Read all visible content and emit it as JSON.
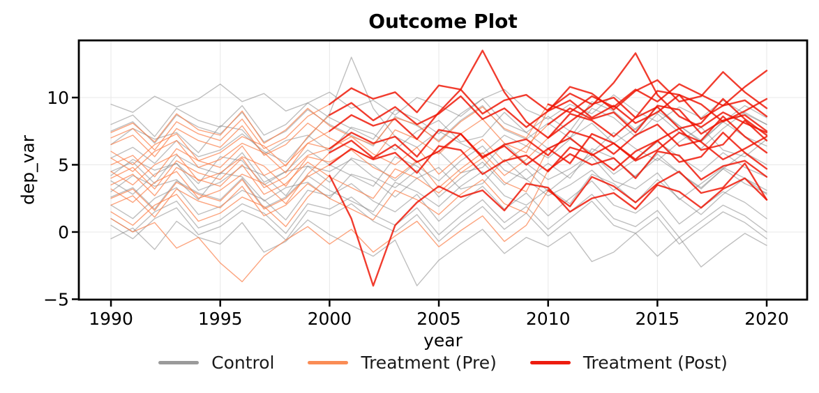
{
  "title": "Outcome Plot",
  "chart_data": {
    "type": "line",
    "title": "Outcome Plot",
    "xlabel": "year",
    "ylabel": "dep_var",
    "grid": true,
    "grid_color": "#e8e8e8",
    "xlim": [
      1988.53,
      2021.85
    ],
    "ylim": [
      -5.03,
      14.25
    ],
    "x_ticks": [
      1990,
      1995,
      2000,
      2005,
      2010,
      2015,
      2020
    ],
    "x_tick_labels": [
      "1990",
      "1995",
      "2000",
      "2005",
      "2010",
      "2015",
      "2020"
    ],
    "y_ticks": [
      -5,
      0,
      5,
      10
    ],
    "y_tick_labels": [
      "−5",
      "0",
      "5",
      "10"
    ],
    "x": [
      1990,
      1991,
      1992,
      1993,
      1994,
      1995,
      1996,
      1997,
      1998,
      1999,
      2000,
      2001,
      2002,
      2003,
      2004,
      2005,
      2006,
      2007,
      2008,
      2009,
      2010,
      2011,
      2012,
      2013,
      2014,
      2015,
      2016,
      2017,
      2018,
      2019,
      2020
    ],
    "styles": {
      "control": {
        "color": "#808080",
        "opacity": 0.5,
        "width": 1.4
      },
      "pre": {
        "color": "#fb7d47",
        "opacity": 0.7,
        "width": 1.4
      },
      "post": {
        "color": "#ee1100",
        "opacity": 0.82,
        "width": 2.4
      }
    },
    "legend": {
      "position": "bottom",
      "entries": [
        {
          "label": "Control",
          "color": "#9a9a9a"
        },
        {
          "label": "Treatment (Pre)",
          "color": "#fa8c55"
        },
        {
          "label": "Treatment (Post)",
          "color": "#ed1c0f"
        }
      ]
    },
    "series": [
      {
        "name": "control-01",
        "group": "control",
        "treat_year": null,
        "values": [
          6.5,
          7.7,
          6.9,
          7.4,
          5.9,
          7.9,
          7.6,
          5.8,
          6.8,
          7.2,
          6.0,
          7.8,
          7.3,
          6.1,
          7.5,
          8.3,
          6.7,
          7.1,
          8.9,
          7.4,
          6.2,
          7.0,
          8.1,
          6.6,
          7.7,
          9.0,
          7.9,
          6.8,
          8.2,
          7.1,
          6.4
        ]
      },
      {
        "name": "control-02",
        "group": "control",
        "treat_year": null,
        "values": [
          2.0,
          1.0,
          2.5,
          3.3,
          1.3,
          1.9,
          3.1,
          2.4,
          0.9,
          3.1,
          2.7,
          3.6,
          2.3,
          1.5,
          2.8,
          0.8,
          2.2,
          3.4,
          1.7,
          2.9,
          1.2,
          2.5,
          3.8,
          2.0,
          1.4,
          2.6,
          0.6,
          1.8,
          3.0,
          2.2,
          1.0
        ]
      },
      {
        "name": "control-03",
        "group": "control",
        "treat_year": null,
        "values": [
          4.5,
          5.2,
          3.6,
          5.7,
          4.8,
          4.3,
          5.9,
          3.7,
          4.5,
          6.1,
          5.0,
          4.2,
          3.4,
          5.6,
          4.9,
          3.8,
          5.3,
          6.4,
          4.6,
          3.9,
          5.1,
          4.0,
          6.2,
          5.5,
          4.1,
          5.8,
          4.4,
          3.2,
          4.7,
          5.9,
          5.0
        ]
      },
      {
        "name": "control-04",
        "group": "control",
        "treat_year": null,
        "values": [
          0.5,
          -0.5,
          1.0,
          1.8,
          -0.2,
          0.4,
          1.6,
          0.9,
          -0.6,
          1.6,
          1.2,
          2.1,
          0.8,
          0.0,
          1.3,
          -0.7,
          0.7,
          1.9,
          0.2,
          1.4,
          -0.3,
          1.0,
          2.3,
          0.5,
          -0.1,
          1.1,
          -0.9,
          0.3,
          1.5,
          0.7,
          -0.5
        ]
      },
      {
        "name": "control-05",
        "group": "control",
        "treat_year": null,
        "values": [
          7.5,
          8.2,
          6.6,
          8.7,
          7.8,
          7.3,
          8.9,
          6.7,
          7.5,
          9.1,
          8.0,
          7.2,
          6.4,
          8.6,
          7.9,
          6.8,
          8.3,
          9.4,
          7.6,
          6.9,
          8.1,
          7.0,
          9.2,
          8.5,
          7.1,
          8.8,
          7.4,
          6.2,
          7.7,
          8.9,
          8.0
        ]
      },
      {
        "name": "control-06",
        "group": "control",
        "treat_year": null,
        "values": [
          3.0,
          4.2,
          3.4,
          3.9,
          2.4,
          4.4,
          4.1,
          2.3,
          3.3,
          3.7,
          2.5,
          4.3,
          3.8,
          2.6,
          4.0,
          4.8,
          3.2,
          3.6,
          5.4,
          3.9,
          2.7,
          3.5,
          4.6,
          3.1,
          4.2,
          5.5,
          4.4,
          3.3,
          4.7,
          3.6,
          2.9
        ]
      },
      {
        "name": "control-07",
        "group": "control",
        "treat_year": null,
        "values": [
          5.5,
          6.3,
          5.1,
          6.8,
          5.6,
          6.1,
          7.3,
          6.0,
          5.2,
          7.0,
          8.8,
          13.0,
          9.2,
          7.1,
          6.3,
          7.5,
          6.6,
          5.8,
          7.2,
          6.4,
          5.5,
          6.9,
          5.9,
          7.4,
          6.2,
          5.3,
          6.7,
          7.8,
          6.1,
          5.6,
          6.9
        ]
      },
      {
        "name": "control-08",
        "group": "control",
        "treat_year": null,
        "values": [
          1.0,
          0.0,
          1.5,
          2.3,
          0.3,
          0.9,
          2.1,
          1.4,
          -0.1,
          2.1,
          1.7,
          2.6,
          1.3,
          0.5,
          1.8,
          -0.2,
          1.2,
          2.4,
          0.7,
          1.9,
          0.2,
          1.5,
          2.8,
          1.0,
          0.4,
          1.6,
          -0.4,
          0.8,
          2.0,
          1.2,
          0.0
        ]
      },
      {
        "name": "control-09",
        "group": "control",
        "treat_year": null,
        "values": [
          8.0,
          8.7,
          7.1,
          9.2,
          8.3,
          7.8,
          9.4,
          7.2,
          8.0,
          9.6,
          8.5,
          7.7,
          6.9,
          9.1,
          8.4,
          7.3,
          8.8,
          9.9,
          8.1,
          7.4,
          8.6,
          7.5,
          9.7,
          9.0,
          7.6,
          9.3,
          7.9,
          6.7,
          8.2,
          9.4,
          8.5
        ]
      },
      {
        "name": "control-10",
        "group": "control",
        "treat_year": null,
        "values": [
          3.8,
          2.8,
          4.3,
          5.1,
          3.1,
          3.7,
          4.9,
          4.2,
          2.7,
          4.9,
          4.5,
          5.4,
          4.1,
          3.3,
          4.6,
          2.6,
          4.0,
          5.2,
          3.5,
          4.7,
          3.0,
          4.3,
          5.6,
          3.8,
          3.2,
          4.4,
          2.4,
          3.6,
          4.8,
          4.0,
          2.8
        ]
      },
      {
        "name": "control-11",
        "group": "control",
        "treat_year": null,
        "values": [
          -0.5,
          0.3,
          -1.3,
          0.8,
          -0.4,
          -0.9,
          0.7,
          -1.5,
          -0.7,
          0.9,
          -0.2,
          -1.0,
          -1.8,
          -0.6,
          -4.0,
          -2.1,
          -0.9,
          0.2,
          -1.6,
          -0.4,
          -1.1,
          0.0,
          -2.2,
          -1.5,
          -0.1,
          -1.8,
          -0.4,
          -2.6,
          -1.3,
          -0.1,
          -1.0
        ]
      },
      {
        "name": "control-12",
        "group": "control",
        "treat_year": null,
        "values": [
          4.2,
          5.4,
          4.6,
          5.1,
          3.6,
          5.6,
          5.3,
          3.5,
          4.5,
          4.9,
          3.7,
          5.5,
          5.0,
          3.8,
          5.2,
          6.0,
          4.4,
          4.8,
          6.6,
          5.1,
          3.9,
          4.7,
          5.8,
          4.3,
          5.4,
          6.7,
          5.6,
          4.5,
          5.9,
          4.8,
          4.1
        ]
      },
      {
        "name": "control-13",
        "group": "control",
        "treat_year": null,
        "values": [
          2.6,
          3.3,
          1.7,
          3.8,
          2.9,
          2.4,
          4.0,
          1.8,
          2.6,
          4.2,
          3.1,
          2.3,
          1.5,
          3.7,
          3.0,
          1.9,
          3.4,
          4.5,
          2.7,
          2.0,
          3.2,
          2.1,
          4.3,
          3.6,
          2.2,
          3.9,
          2.5,
          1.3,
          2.8,
          4.0,
          3.1
        ]
      },
      {
        "name": "control-14",
        "group": "control",
        "treat_year": null,
        "values": [
          9.5,
          8.9,
          10.1,
          9.3,
          9.9,
          11.0,
          9.7,
          10.3,
          9.0,
          9.6,
          10.4,
          9.2,
          9.8,
          8.7,
          10.0,
          9.4,
          8.6,
          9.9,
          10.6,
          9.1,
          8.4,
          9.5,
          8.8,
          10.2,
          9.0,
          8.2,
          9.3,
          8.5,
          9.8,
          8.8,
          8.0
        ]
      },
      {
        "name": "treated-a1",
        "group": "treated",
        "treat_year": 2000,
        "values": [
          4.0,
          4.8,
          3.2,
          5.3,
          4.4,
          3.9,
          5.5,
          3.3,
          4.1,
          5.7,
          6.2,
          7.4,
          6.6,
          7.1,
          5.6,
          7.6,
          7.3,
          5.5,
          6.5,
          6.9,
          5.7,
          7.5,
          7.0,
          5.8,
          7.2,
          8.0,
          6.4,
          6.8,
          8.6,
          7.1,
          5.9
        ]
      },
      {
        "name": "treated-a2",
        "group": "treated",
        "treat_year": 2000,
        "values": [
          6.0,
          5.0,
          6.5,
          7.3,
          5.3,
          5.9,
          7.1,
          6.4,
          4.9,
          7.1,
          8.7,
          9.6,
          8.3,
          9.3,
          8.0,
          8.8,
          10.1,
          8.4,
          9.2,
          7.8,
          9.0,
          9.8,
          8.5,
          9.4,
          8.1,
          8.9,
          10.2,
          9.5,
          8.2,
          9.0,
          9.9
        ]
      },
      {
        "name": "treated-a3",
        "group": "treated",
        "treat_year": 2000,
        "values": [
          2.5,
          3.2,
          1.6,
          3.7,
          2.8,
          2.3,
          3.9,
          1.7,
          2.5,
          4.1,
          5.0,
          6.2,
          5.4,
          5.9,
          4.4,
          6.4,
          6.1,
          4.3,
          5.3,
          5.7,
          4.5,
          6.3,
          5.8,
          4.6,
          6.0,
          6.8,
          5.2,
          5.6,
          7.4,
          5.9,
          4.7
        ]
      },
      {
        "name": "treated-a4",
        "group": "treated",
        "treat_year": 2000,
        "values": [
          5.0,
          5.7,
          4.1,
          6.2,
          5.3,
          4.8,
          6.4,
          4.2,
          5.0,
          6.6,
          7.5,
          8.7,
          7.9,
          8.4,
          6.9,
          8.9,
          10.6,
          13.5,
          10.4,
          8.2,
          7.0,
          8.8,
          8.3,
          7.1,
          8.5,
          9.3,
          7.7,
          8.1,
          9.9,
          8.4,
          7.2
        ]
      },
      {
        "name": "treated-a5",
        "group": "treated",
        "treat_year": 2000,
        "values": [
          3.2,
          2.2,
          3.7,
          4.5,
          2.5,
          3.1,
          4.3,
          3.6,
          2.1,
          4.3,
          5.9,
          6.8,
          5.5,
          6.5,
          5.2,
          6.0,
          7.3,
          5.6,
          6.4,
          5.0,
          6.2,
          7.0,
          5.7,
          6.6,
          5.3,
          6.1,
          7.4,
          6.7,
          5.4,
          6.2,
          7.1
        ]
      },
      {
        "name": "treated-a6",
        "group": "treated",
        "treat_year": 2000,
        "values": [
          7.0,
          7.7,
          6.1,
          8.2,
          7.3,
          6.8,
          8.4,
          6.2,
          7.0,
          8.6,
          9.5,
          10.7,
          9.9,
          10.4,
          8.9,
          10.9,
          10.6,
          8.8,
          9.8,
          10.2,
          9.0,
          10.8,
          10.3,
          9.1,
          10.5,
          11.3,
          9.7,
          10.1,
          11.9,
          10.4,
          9.2
        ]
      },
      {
        "name": "treated-a7",
        "group": "treated",
        "treat_year": 2000,
        "values": [
          1.5,
          0.5,
          2.0,
          2.8,
          0.8,
          1.4,
          2.6,
          1.9,
          0.4,
          2.6,
          4.2,
          1.0,
          -4.0,
          0.5,
          2.2,
          3.4,
          2.6,
          3.1,
          1.6,
          3.6,
          3.3,
          1.5,
          2.5,
          2.9,
          1.7,
          3.5,
          3.0,
          1.8,
          3.2,
          4.0,
          2.4
        ]
      },
      {
        "name": "treated-b1",
        "group": "treated",
        "treat_year": 2010,
        "values": [
          3.5,
          4.3,
          2.7,
          4.8,
          3.9,
          3.4,
          5.0,
          2.8,
          3.6,
          5.2,
          4.1,
          3.3,
          2.5,
          4.7,
          4.0,
          2.9,
          4.4,
          5.5,
          3.7,
          3.0,
          6.2,
          5.1,
          7.3,
          6.6,
          5.4,
          6.8,
          7.7,
          6.1,
          6.5,
          8.3,
          6.8
        ]
      },
      {
        "name": "treated-b2",
        "group": "treated",
        "treat_year": 2010,
        "values": [
          5.5,
          4.5,
          6.0,
          6.8,
          4.8,
          5.4,
          6.6,
          5.9,
          4.4,
          6.6,
          6.2,
          7.1,
          5.8,
          5.0,
          6.3,
          4.3,
          5.7,
          6.9,
          5.2,
          6.4,
          8.0,
          9.2,
          8.4,
          8.9,
          7.4,
          9.4,
          9.1,
          7.3,
          8.3,
          8.7,
          7.5
        ]
      },
      {
        "name": "treated-b3",
        "group": "treated",
        "treat_year": 2010,
        "values": [
          2.0,
          2.7,
          1.1,
          3.2,
          2.3,
          1.8,
          3.4,
          1.2,
          2.0,
          3.6,
          2.5,
          1.7,
          0.9,
          3.1,
          2.4,
          1.3,
          2.8,
          3.9,
          2.1,
          1.4,
          4.6,
          5.8,
          5.0,
          5.5,
          4.0,
          6.0,
          5.7,
          3.9,
          4.9,
          5.3,
          4.1
        ]
      },
      {
        "name": "treated-b4",
        "group": "treated",
        "treat_year": 2010,
        "values": [
          6.5,
          7.2,
          5.6,
          7.7,
          6.8,
          6.3,
          7.9,
          5.7,
          6.5,
          8.1,
          7.0,
          6.2,
          5.4,
          7.6,
          6.9,
          5.8,
          7.3,
          8.4,
          6.6,
          5.9,
          9.1,
          10.3,
          9.5,
          10.0,
          8.5,
          10.5,
          10.2,
          8.4,
          9.4,
          9.8,
          8.6
        ]
      },
      {
        "name": "treated-b5",
        "group": "treated",
        "treat_year": 2010,
        "values": [
          4.5,
          3.5,
          5.0,
          5.8,
          3.8,
          4.4,
          5.6,
          4.9,
          3.4,
          5.6,
          5.2,
          6.1,
          4.8,
          4.0,
          5.3,
          3.3,
          4.7,
          5.9,
          4.2,
          5.4,
          7.0,
          8.2,
          9.4,
          11.1,
          13.3,
          10.2,
          8.6,
          7.8,
          8.9,
          8.1,
          7.4
        ]
      },
      {
        "name": "treated-b6",
        "group": "treated",
        "treat_year": 2010,
        "values": [
          1.0,
          0.0,
          0.7,
          -1.2,
          -0.4,
          -2.3,
          -3.7,
          -1.8,
          -0.6,
          0.4,
          -0.9,
          0.2,
          -1.5,
          -0.3,
          0.8,
          -1.1,
          0.1,
          1.2,
          -0.7,
          0.5,
          3.1,
          1.9,
          4.1,
          3.4,
          2.2,
          3.6,
          4.5,
          2.9,
          3.3,
          5.1,
          2.4
        ]
      },
      {
        "name": "treated-b7",
        "group": "treated",
        "treat_year": 2010,
        "values": [
          7.4,
          8.1,
          6.7,
          8.8,
          7.6,
          7.2,
          9.0,
          6.6,
          7.6,
          9.2,
          7.9,
          7.1,
          6.5,
          8.5,
          8.0,
          6.7,
          8.2,
          9.3,
          7.7,
          7.0,
          9.5,
          8.9,
          10.1,
          9.3,
          10.6,
          9.7,
          11.0,
          10.2,
          9.4,
          10.8,
          12.0
        ]
      }
    ]
  }
}
